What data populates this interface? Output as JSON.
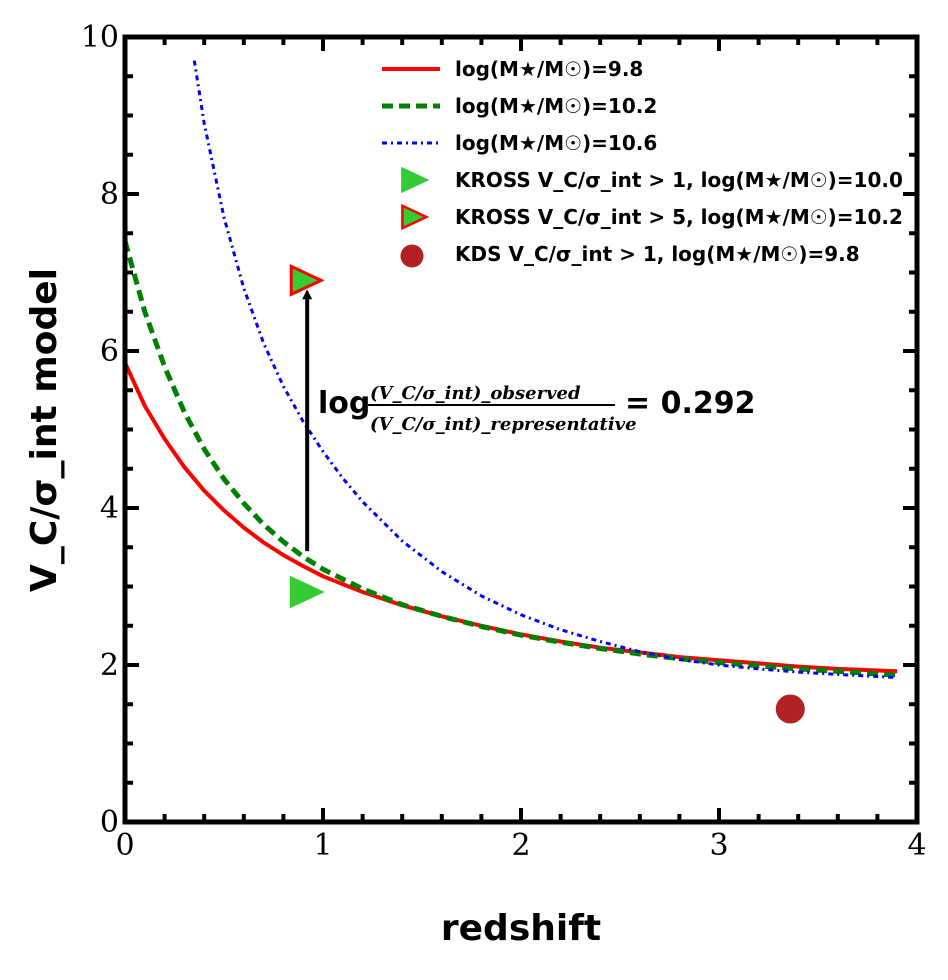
{
  "chart_data": {
    "type": "line",
    "title": "",
    "xlabel": "redshift",
    "ylabel": "V_C/σ_int model",
    "xlim": [
      0,
      4
    ],
    "ylim": [
      0,
      10
    ],
    "xticks": [
      "0",
      "1",
      "2",
      "3",
      "4"
    ],
    "yticks": [
      "0",
      "2",
      "4",
      "6",
      "8",
      "10"
    ],
    "series": [
      {
        "name": "log(M★/M☉)=9.8",
        "color": "#ff0000",
        "style": "solid",
        "x": [
          0.0,
          0.1,
          0.2,
          0.3,
          0.4,
          0.5,
          0.6,
          0.7,
          0.8,
          0.9,
          1.0,
          1.2,
          1.4,
          1.6,
          1.8,
          2.0,
          2.2,
          2.4,
          2.6,
          2.8,
          3.0,
          3.2,
          3.4,
          3.6,
          3.9
        ],
        "y": [
          5.85,
          5.3,
          4.88,
          4.52,
          4.22,
          3.97,
          3.75,
          3.56,
          3.4,
          3.26,
          3.13,
          2.93,
          2.76,
          2.62,
          2.5,
          2.39,
          2.3,
          2.22,
          2.16,
          2.1,
          2.06,
          2.02,
          1.98,
          1.95,
          1.92
        ]
      },
      {
        "name": "log(M★/M☉)=10.2",
        "color": "#008000",
        "style": "dashed",
        "x": [
          0.0,
          0.1,
          0.2,
          0.3,
          0.4,
          0.5,
          0.6,
          0.7,
          0.8,
          0.9,
          1.0,
          1.2,
          1.4,
          1.6,
          1.8,
          2.0,
          2.2,
          2.4,
          2.6,
          2.8,
          3.0,
          3.2,
          3.4,
          3.6,
          3.9
        ],
        "y": [
          7.4,
          6.5,
          5.8,
          5.22,
          4.75,
          4.37,
          4.06,
          3.79,
          3.57,
          3.38,
          3.22,
          2.97,
          2.77,
          2.62,
          2.49,
          2.38,
          2.29,
          2.21,
          2.14,
          2.08,
          2.03,
          1.99,
          1.95,
          1.92,
          1.87
        ]
      },
      {
        "name": "log(M★/M☉)=10.6",
        "color": "#0000ff",
        "style": "dashdot",
        "x": [
          0.35,
          0.4,
          0.5,
          0.6,
          0.7,
          0.8,
          0.9,
          1.0,
          1.1,
          1.2,
          1.4,
          1.6,
          1.8,
          2.0,
          2.2,
          2.4,
          2.6,
          2.8,
          3.0,
          3.2,
          3.4,
          3.6,
          3.9
        ],
        "y": [
          9.7,
          8.9,
          7.7,
          6.8,
          6.1,
          5.55,
          5.1,
          4.72,
          4.38,
          4.08,
          3.58,
          3.19,
          2.88,
          2.64,
          2.45,
          2.3,
          2.17,
          2.07,
          2.0,
          1.95,
          1.91,
          1.88,
          1.84
        ]
      }
    ],
    "points": [
      {
        "name": "KROSS V_C/σ_int > 1, log(M★/M☉)=10.0",
        "marker": "triangle-right",
        "fill": "#33cc33",
        "stroke": "#33cc33",
        "x": 0.9,
        "y": 2.93
      },
      {
        "name": "KROSS V_C/σ_int > 5, log(M★/M☉)=10.2",
        "marker": "triangle-right",
        "fill": "#33cc33",
        "stroke": "#ff0000",
        "x": 0.9,
        "y": 6.9
      },
      {
        "name": "KDS V_C/σ_int > 1, log(M★/M☉)=9.8",
        "marker": "circle",
        "fill": "#b22222",
        "stroke": "#b22222",
        "x": 3.36,
        "y": 1.44
      }
    ],
    "arrow": {
      "x": 0.92,
      "y_from": 3.45,
      "y_to": 6.85,
      "color": "#000000"
    },
    "annotation": {
      "prefix": "log",
      "numerator": "(V_C/σ_int)_observed",
      "denominator": "(V_C/σ_int)_representative",
      "value_text": "= 0.292"
    },
    "legend": {
      "position": "top-right",
      "entries": [
        {
          "label": "log(M★/M☉)=9.8",
          "kind": "line",
          "color": "#ff0000",
          "style": "solid"
        },
        {
          "label": "log(M★/M☉)=10.2",
          "kind": "line",
          "color": "#008000",
          "style": "dashed"
        },
        {
          "label": "log(M★/M☉)=10.6",
          "kind": "line",
          "color": "#0000ff",
          "style": "dashdot"
        },
        {
          "label": "KROSS V_C/σ_int > 1, log(M★/M☉)=10.0",
          "kind": "triangle",
          "fill": "#33cc33",
          "stroke": "#33cc33"
        },
        {
          "label": "KROSS V_C/σ_int > 5, log(M★/M☉)=10.2",
          "kind": "triangle",
          "fill": "#33cc33",
          "stroke": "#ff0000"
        },
        {
          "label": "KDS V_C/σ_int > 1, log(M★/M☉)=9.8",
          "kind": "circle",
          "fill": "#b22222",
          "stroke": "#b22222"
        }
      ]
    }
  }
}
